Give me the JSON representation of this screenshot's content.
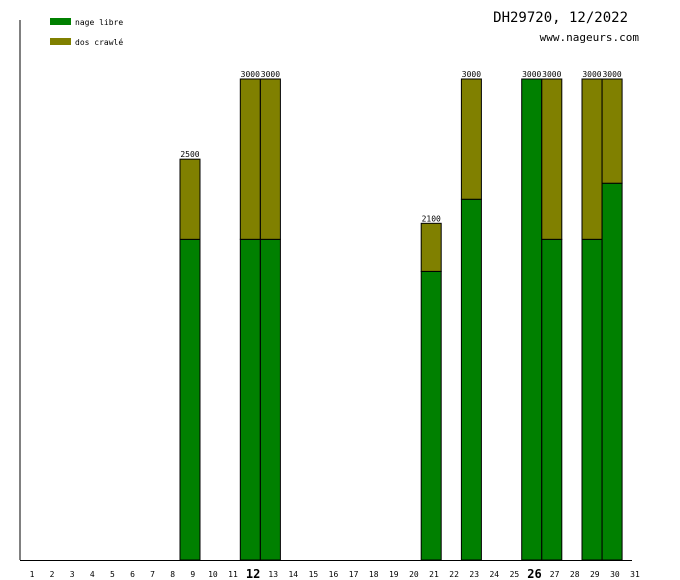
{
  "header": {
    "title": "DH29720, 12/2022",
    "site": "www.nageurs.com"
  },
  "chart_data": {
    "type": "bar",
    "stacked": true,
    "categories": [
      "1",
      "2",
      "3",
      "4",
      "5",
      "6",
      "7",
      "8",
      "9",
      "10",
      "11",
      "12",
      "13",
      "14",
      "15",
      "16",
      "17",
      "18",
      "19",
      "20",
      "21",
      "22",
      "23",
      "24",
      "25",
      "26",
      "27",
      "28",
      "29",
      "30",
      "31"
    ],
    "emphasized_categories": [
      "12",
      "26"
    ],
    "series": [
      {
        "name": "nage libre",
        "color": "#008000",
        "values": [
          0,
          0,
          0,
          0,
          0,
          0,
          0,
          0,
          2000,
          0,
          0,
          2000,
          2000,
          0,
          0,
          0,
          0,
          0,
          0,
          0,
          1800,
          0,
          2250,
          0,
          0,
          3000,
          2000,
          0,
          2000,
          2350,
          0
        ]
      },
      {
        "name": "dos crawlé",
        "color": "#808000",
        "values": [
          0,
          0,
          0,
          0,
          0,
          0,
          0,
          0,
          500,
          0,
          0,
          1000,
          1000,
          0,
          0,
          0,
          0,
          0,
          0,
          0,
          300,
          0,
          750,
          0,
          0,
          0,
          1000,
          0,
          1000,
          650,
          0
        ]
      }
    ],
    "totals": [
      0,
      0,
      0,
      0,
      0,
      0,
      0,
      0,
      2500,
      0,
      0,
      3000,
      3000,
      0,
      0,
      0,
      0,
      0,
      0,
      0,
      2100,
      0,
      3000,
      0,
      0,
      3000,
      3000,
      0,
      3000,
      3000,
      0
    ],
    "ylim": [
      0,
      3000
    ],
    "legend_position": "top-left",
    "grid": false
  }
}
